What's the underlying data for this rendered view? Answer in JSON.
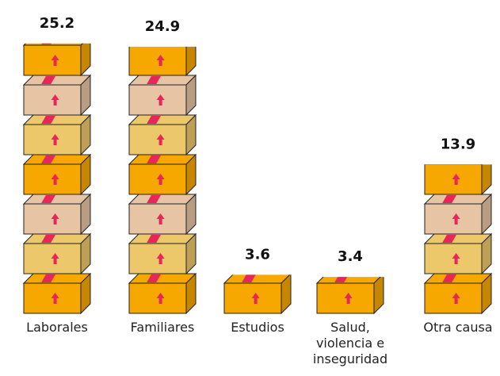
{
  "chart_data": {
    "type": "bar",
    "categories": [
      "Laborales",
      "Familiares",
      "Estudios",
      "Salud, violencia e inseguridad",
      "Otra causa"
    ],
    "values": [
      25.2,
      24.9,
      3.6,
      3.4,
      13.9
    ],
    "colors": [
      "#f7a800",
      "#ecc86a",
      "#e6c4a4"
    ]
  }
}
